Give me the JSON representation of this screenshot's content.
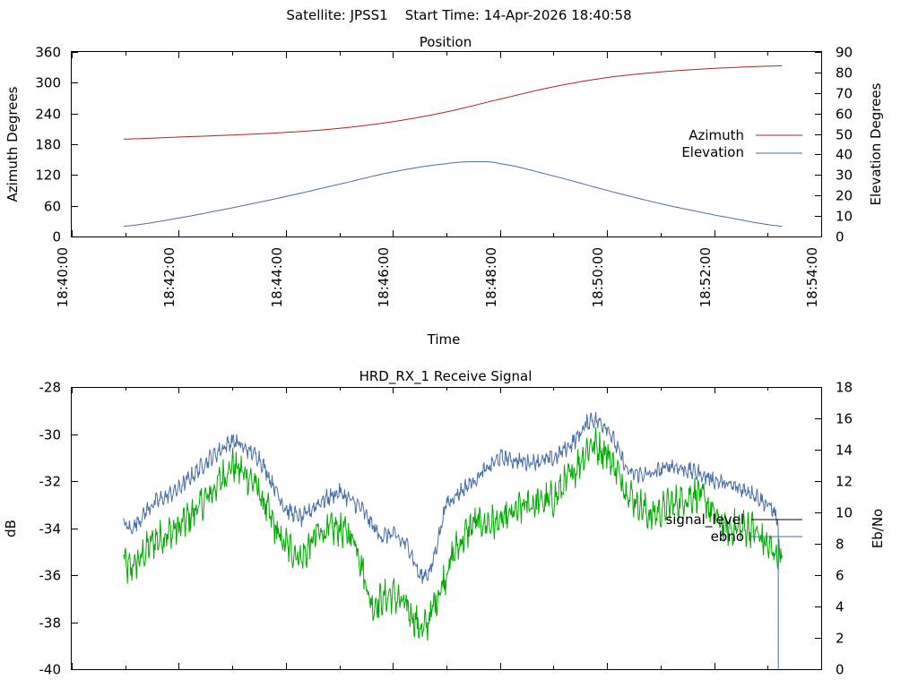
{
  "title": {
    "satellite": "Satellite: JPSS1",
    "start_time": "Start Time: 14-Apr-2026 18:40:58"
  },
  "chart_data": [
    {
      "type": "line",
      "title": "Position",
      "xlabel": "Time",
      "ylabel_left": "Azimuth Degrees",
      "ylabel_right": "Elevation Degrees",
      "xlim_minutes": [
        0,
        14
      ],
      "x_ticks": [
        "18:40:00",
        "18:42:00",
        "18:44:00",
        "18:46:00",
        "18:48:00",
        "18:50:00",
        "18:52:00",
        "18:54:00"
      ],
      "ylim_left": [
        0,
        360
      ],
      "ylim_right": [
        0,
        90
      ],
      "y_ticks_left": [
        "0",
        "60",
        "120",
        "180",
        "240",
        "300",
        "360"
      ],
      "y_ticks_right": [
        "0",
        "10",
        "20",
        "30",
        "40",
        "50",
        "60",
        "70",
        "80",
        "90"
      ],
      "grid": false,
      "legend_position": "right",
      "series": [
        {
          "name": "Azimuth",
          "axis": "left",
          "color": "#b22222",
          "x": [
            0.97,
            2,
            3,
            4,
            5,
            6,
            7,
            8,
            9,
            10,
            11,
            12,
            13.27
          ],
          "y": [
            190,
            194,
            198,
            203,
            211,
            224,
            243,
            268,
            292,
            310,
            321,
            328,
            333
          ]
        },
        {
          "name": "Elevation",
          "axis": "right",
          "color": "#4a6fa5",
          "x": [
            0.97,
            2,
            3,
            4,
            5,
            6,
            7,
            7.57,
            8,
            9,
            10,
            11,
            12,
            13.27
          ],
          "y": [
            5,
            9,
            14,
            19.5,
            25.5,
            31.5,
            35.5,
            36.5,
            35.5,
            29.5,
            22.5,
            16,
            10.5,
            5
          ]
        }
      ]
    },
    {
      "type": "line",
      "title": "HRD_RX_1 Receive Signal",
      "ylabel_left": "dB",
      "ylabel_right": "Eb/No",
      "xlim_minutes": [
        0,
        14
      ],
      "ylim_left": [
        -40,
        -28
      ],
      "ylim_right": [
        0,
        18
      ],
      "y_ticks_left": [
        "-40",
        "-38",
        "-36",
        "-34",
        "-32",
        "-30",
        "-28"
      ],
      "y_ticks_right": [
        "0",
        "2",
        "4",
        "6",
        "8",
        "10",
        "12",
        "14",
        "16",
        "18"
      ],
      "grid": false,
      "legend_position": "right",
      "series": [
        {
          "name": "signal_level",
          "axis": "left",
          "color": "#00aa00",
          "noise": 0.55,
          "x": [
            0.97,
            1.05,
            1.25,
            1.5,
            2.0,
            2.5,
            3.0,
            3.4,
            3.9,
            4.3,
            4.6,
            5.0,
            5.3,
            5.6,
            5.75,
            6.0,
            6.3,
            6.55,
            6.65,
            6.9,
            7.15,
            7.5,
            8.0,
            8.5,
            9.0,
            9.4,
            9.7,
            10.0,
            10.4,
            10.8,
            11.2,
            11.7,
            12.2,
            12.7,
            13.1,
            13.27
          ],
          "y": [
            -35.3,
            -35.8,
            -35.4,
            -34.6,
            -34.0,
            -32.8,
            -31.3,
            -32.0,
            -34.5,
            -35.3,
            -34.2,
            -34.0,
            -34.5,
            -37.3,
            -37.1,
            -36.8,
            -37.5,
            -38.4,
            -38.0,
            -36.5,
            -35.0,
            -33.8,
            -33.8,
            -33.0,
            -32.8,
            -31.5,
            -30.4,
            -30.8,
            -32.5,
            -33.5,
            -33.0,
            -32.5,
            -34.0,
            -34.0,
            -35.0,
            -35.2
          ]
        },
        {
          "name": "ebno",
          "axis": "right",
          "color": "#4a6fa5",
          "noise": 0.4,
          "x": [
            0.97,
            1.1,
            1.5,
            2.0,
            2.5,
            3.0,
            3.5,
            4.0,
            4.3,
            4.6,
            5.0,
            5.4,
            5.75,
            6.0,
            6.3,
            6.5,
            6.7,
            7.0,
            7.5,
            8.0,
            8.5,
            9.0,
            9.4,
            9.7,
            10.0,
            10.4,
            10.8,
            11.2,
            11.7,
            12.2,
            12.7,
            13.1,
            13.2
          ],
          "y": [
            9.3,
            8.9,
            10.5,
            11.5,
            13.2,
            14.6,
            13.5,
            10.2,
            9.6,
            10.6,
            11.3,
            10.3,
            8.5,
            8.6,
            7.8,
            5.9,
            6.2,
            10.6,
            12.0,
            13.5,
            13.2,
            13.4,
            14.6,
            16.0,
            15.5,
            12.5,
            12.4,
            13.0,
            12.5,
            11.8,
            11.3,
            10.2,
            9.3
          ]
        }
      ]
    }
  ]
}
